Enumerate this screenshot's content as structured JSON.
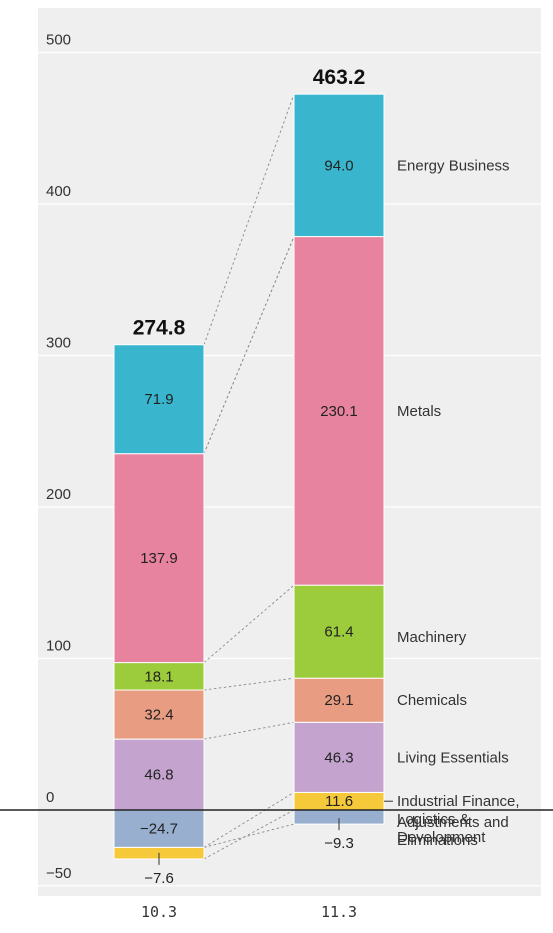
{
  "chart_data": {
    "type": "bar",
    "stacked": true,
    "categories": [
      "10.3",
      "11.3"
    ],
    "ylim": [
      -50,
      500
    ],
    "yticks": [
      500,
      400,
      300,
      200,
      100,
      0,
      -50
    ],
    "yticks_text": [
      "500",
      "400",
      "300",
      "200",
      "100",
      "0",
      "−50"
    ],
    "totals": [
      274.8,
      463.2
    ],
    "totals_text": [
      "274.8",
      "463.2"
    ],
    "grid": true,
    "legend_placement": "right",
    "series": [
      {
        "name": "Adjustments and Eliminations",
        "color": "#98afd0",
        "values": [
          -24.7,
          -9.3
        ],
        "values_text": [
          "−24.7",
          "−9.3"
        ]
      },
      {
        "name": "Industrial Finance, Logistics & Development",
        "color": "#f5c93a",
        "values": [
          -7.6,
          11.6
        ],
        "values_text": [
          "−7.6",
          "11.6"
        ]
      },
      {
        "name": "Living Essentials",
        "color": "#c4a3cf",
        "values": [
          46.8,
          46.3
        ],
        "values_text": [
          "46.8",
          "46.3"
        ]
      },
      {
        "name": "Chemicals",
        "color": "#e89c81",
        "values": [
          32.4,
          29.1
        ],
        "values_text": [
          "32.4",
          "29.1"
        ]
      },
      {
        "name": "Machinery",
        "color": "#9ccb3b",
        "values": [
          18.1,
          61.4
        ],
        "values_text": [
          "18.1",
          "61.4"
        ]
      },
      {
        "name": "Metals",
        "color": "#e8839f",
        "values": [
          137.9,
          230.1
        ],
        "values_text": [
          "137.9",
          "230.1"
        ]
      },
      {
        "name": "Energy Business",
        "color": "#39b6cd",
        "values": [
          71.9,
          94.0
        ],
        "values_text": [
          "71.9",
          "94.0"
        ]
      }
    ],
    "legend_labels": [
      {
        "series": "Industrial Finance, Logistics & Development",
        "lines": [
          "Industrial Finance,",
          "Logistics &",
          "Development"
        ]
      },
      {
        "series": "Energy Business",
        "lines": [
          "Energy Business"
        ]
      },
      {
        "series": "Metals",
        "lines": [
          "Metals"
        ]
      },
      {
        "series": "Machinery",
        "lines": [
          "Machinery"
        ]
      },
      {
        "series": "Chemicals",
        "lines": [
          "Chemicals"
        ]
      },
      {
        "series": "Living Essentials",
        "lines": [
          "Living Essentials"
        ]
      },
      {
        "series": "Adjustments and Eliminations",
        "lines": [
          "Adjustments and",
          "Eliminations"
        ]
      }
    ]
  }
}
